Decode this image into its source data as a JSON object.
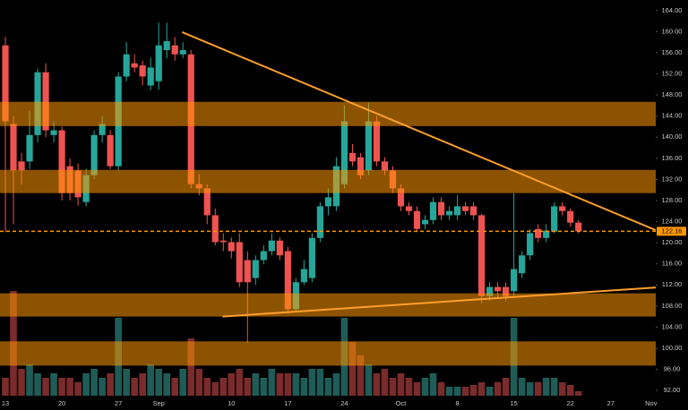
{
  "chart_data": {
    "type": "candlestick",
    "categories": [
      "13",
      null,
      null,
      null,
      null,
      null,
      null,
      "20",
      null,
      null,
      null,
      null,
      null,
      null,
      "27",
      null,
      null,
      null,
      null,
      "Sep",
      null,
      null,
      null,
      null,
      null,
      null,
      null,
      null,
      "10",
      null,
      null,
      null,
      null,
      null,
      null,
      "17",
      null,
      null,
      null,
      null,
      null,
      null,
      "24",
      null,
      null,
      null,
      null,
      null,
      null,
      "Oct",
      null,
      null,
      null,
      null,
      null,
      null,
      "8",
      null,
      null,
      null,
      null,
      null,
      null,
      "15",
      null,
      null,
      null,
      null,
      null,
      null,
      "22",
      null,
      null,
      null,
      null,
      "27",
      null,
      null,
      null,
      null,
      "Nov"
    ],
    "open": [
      157.4,
      142.5,
      135.4,
      135.4,
      140.4,
      152.3,
      140.4,
      141.3,
      134.5,
      133.7,
      127.7,
      132.8,
      140.4,
      140.4,
      134.5,
      151.5,
      154,
      153.6,
      149.8,
      150.6,
      156.5,
      157.4,
      155.7,
      155.7,
      131.1,
      130.3,
      125.2,
      120.4,
      120.1,
      120.1,
      116.7,
      113.3,
      116.7,
      118.4,
      120.4,
      118.4,
      107.4,
      112.5,
      113.3,
      120.9,
      126.9,
      126.9,
      131.1,
      137,
      136.2,
      133.7,
      143,
      135.4,
      133.7,
      130.3,
      126.9,
      126,
      123.5,
      124.3,
      127.7,
      125.2,
      125.2,
      126.9,
      126.9,
      125.2,
      109.9,
      111.6,
      111.6,
      110.8,
      114.2,
      117.6,
      122.6,
      120.9,
      122.1,
      126.9,
      126,
      123.8,
      null,
      null,
      null,
      null,
      null,
      null,
      null,
      null,
      null
    ],
    "high": [
      159,
      144,
      137,
      145,
      153,
      154,
      143,
      142,
      136,
      135,
      134,
      141.3,
      144,
      141.3,
      152.3,
      158,
      155.7,
      154.5,
      155,
      161.7,
      161.7,
      159,
      158,
      156.5,
      133,
      131.1,
      126.5,
      121.8,
      121,
      121.8,
      118.4,
      117.6,
      119.5,
      121.8,
      121,
      119.2,
      113.3,
      116.7,
      121.8,
      127.7,
      130.3,
      136.2,
      146,
      138.7,
      137,
      146.5,
      144,
      136.2,
      134.5,
      131.1,
      127.7,
      126.9,
      125.2,
      128.6,
      128.6,
      126.9,
      129,
      127.7,
      127.7,
      125.5,
      112.5,
      112.5,
      112.5,
      129.4,
      118.4,
      122.6,
      123.5,
      123.5,
      127.7,
      127.7,
      126.5,
      124.3,
      null,
      null,
      null,
      null,
      null,
      null,
      null,
      null,
      null
    ],
    "low": [
      122,
      123.5,
      131,
      134,
      139,
      140,
      139,
      128,
      128,
      127,
      126.9,
      132,
      139,
      134,
      133.7,
      150.6,
      152.3,
      149.8,
      148.9,
      149,
      155,
      154.5,
      155,
      130.3,
      129,
      123.5,
      119.5,
      118.4,
      117,
      111.6,
      101,
      112,
      115.9,
      117.6,
      116.7,
      106.5,
      106.9,
      112,
      112.5,
      120.1,
      125.2,
      126,
      130.3,
      134.5,
      132,
      132.8,
      134.5,
      132.8,
      129.4,
      126,
      125.2,
      122,
      122.6,
      123.5,
      124.3,
      124.3,
      124.3,
      125.2,
      124.3,
      108.5,
      109,
      109.5,
      109,
      109.9,
      113.3,
      116.7,
      120.1,
      120.1,
      121.8,
      125.2,
      123,
      121.8,
      null,
      null,
      null,
      null,
      null,
      null,
      null,
      null,
      null
    ],
    "close": [
      143,
      133.7,
      133.7,
      140.4,
      152.3,
      141.3,
      141.3,
      129.4,
      129.4,
      128.6,
      132.8,
      140.4,
      142.5,
      134.5,
      151.5,
      155.7,
      153.2,
      151.5,
      153.2,
      157.4,
      158.2,
      155.7,
      156.5,
      131.1,
      130.3,
      125.2,
      120.1,
      120.1,
      118.4,
      112.5,
      112.5,
      116.7,
      118.4,
      120.4,
      117.6,
      107.4,
      112.5,
      115,
      120.9,
      126.9,
      128.6,
      134.5,
      143,
      135.4,
      132.8,
      143,
      135.4,
      133.7,
      130.3,
      126.9,
      126,
      122.6,
      124.3,
      127.7,
      125.2,
      126,
      126.9,
      126,
      125.2,
      109.9,
      111.6,
      110.8,
      109.9,
      115,
      117.6,
      121.8,
      120.9,
      122.3,
      126.9,
      126,
      123.8,
      122.16,
      null,
      null,
      null,
      null,
      null,
      null,
      null,
      null,
      null
    ],
    "volume": [
      20,
      117,
      30,
      35,
      25,
      20,
      25,
      20,
      20,
      15,
      25,
      30,
      20,
      25,
      87,
      30,
      20,
      25,
      35,
      30,
      25,
      20,
      30,
      64,
      30,
      20,
      15,
      20,
      25,
      30,
      20,
      25,
      20,
      30,
      25,
      25,
      25,
      20,
      30,
      30,
      20,
      25,
      87,
      60,
      45,
      35,
      25,
      30,
      20,
      25,
      20,
      15,
      20,
      25,
      15,
      10,
      10,
      10,
      12,
      15,
      10,
      15,
      20,
      87,
      20,
      15,
      15,
      20,
      20,
      15,
      12,
      5,
      null,
      null,
      null,
      null,
      null,
      null,
      null,
      null,
      null
    ],
    "vlim": [
      0,
      120
    ],
    "up_color": "#26a69a",
    "down_color": "#ef5350",
    "ylim": [
      91,
      166
    ],
    "yticks": [
      {
        "value": 164,
        "label": "164.00"
      },
      {
        "value": 160,
        "label": "160.00"
      },
      {
        "value": 156,
        "label": "156.00"
      },
      {
        "value": 152,
        "label": "152.00"
      },
      {
        "value": 148,
        "label": "148.00"
      },
      {
        "value": 144,
        "label": "144.00"
      },
      {
        "value": 140,
        "label": "140.00"
      },
      {
        "value": 136,
        "label": "136.00"
      },
      {
        "value": 132,
        "label": "132.00"
      },
      {
        "value": 128,
        "label": "128.00"
      },
      {
        "value": 124,
        "label": "124.00"
      },
      {
        "value": 120,
        "label": "120.00"
      },
      {
        "value": 116,
        "label": "116.00"
      },
      {
        "value": 112,
        "label": "112.00"
      },
      {
        "value": 108,
        "label": "108.00"
      },
      {
        "value": 104,
        "label": "104.00"
      },
      {
        "value": 100,
        "label": "100.00"
      },
      {
        "value": 96,
        "label": "96.00"
      },
      {
        "value": 92,
        "label": "92.00"
      }
    ],
    "last_price": 122.16,
    "zones": [
      [
        142.1,
        146.7
      ],
      [
        129.4,
        133.8
      ],
      [
        106,
        110.4
      ],
      [
        96.7,
        101.3
      ]
    ],
    "zone_color": "#ff9800",
    "trendlines": [
      {
        "x": [
          21.9,
          84.6
        ],
        "y": [
          159.9,
          119.8
        ]
      },
      {
        "x": [
          26.9,
          81.5
        ],
        "y": [
          106,
          111.6
        ]
      }
    ],
    "line_color": "#ff9f2e"
  }
}
